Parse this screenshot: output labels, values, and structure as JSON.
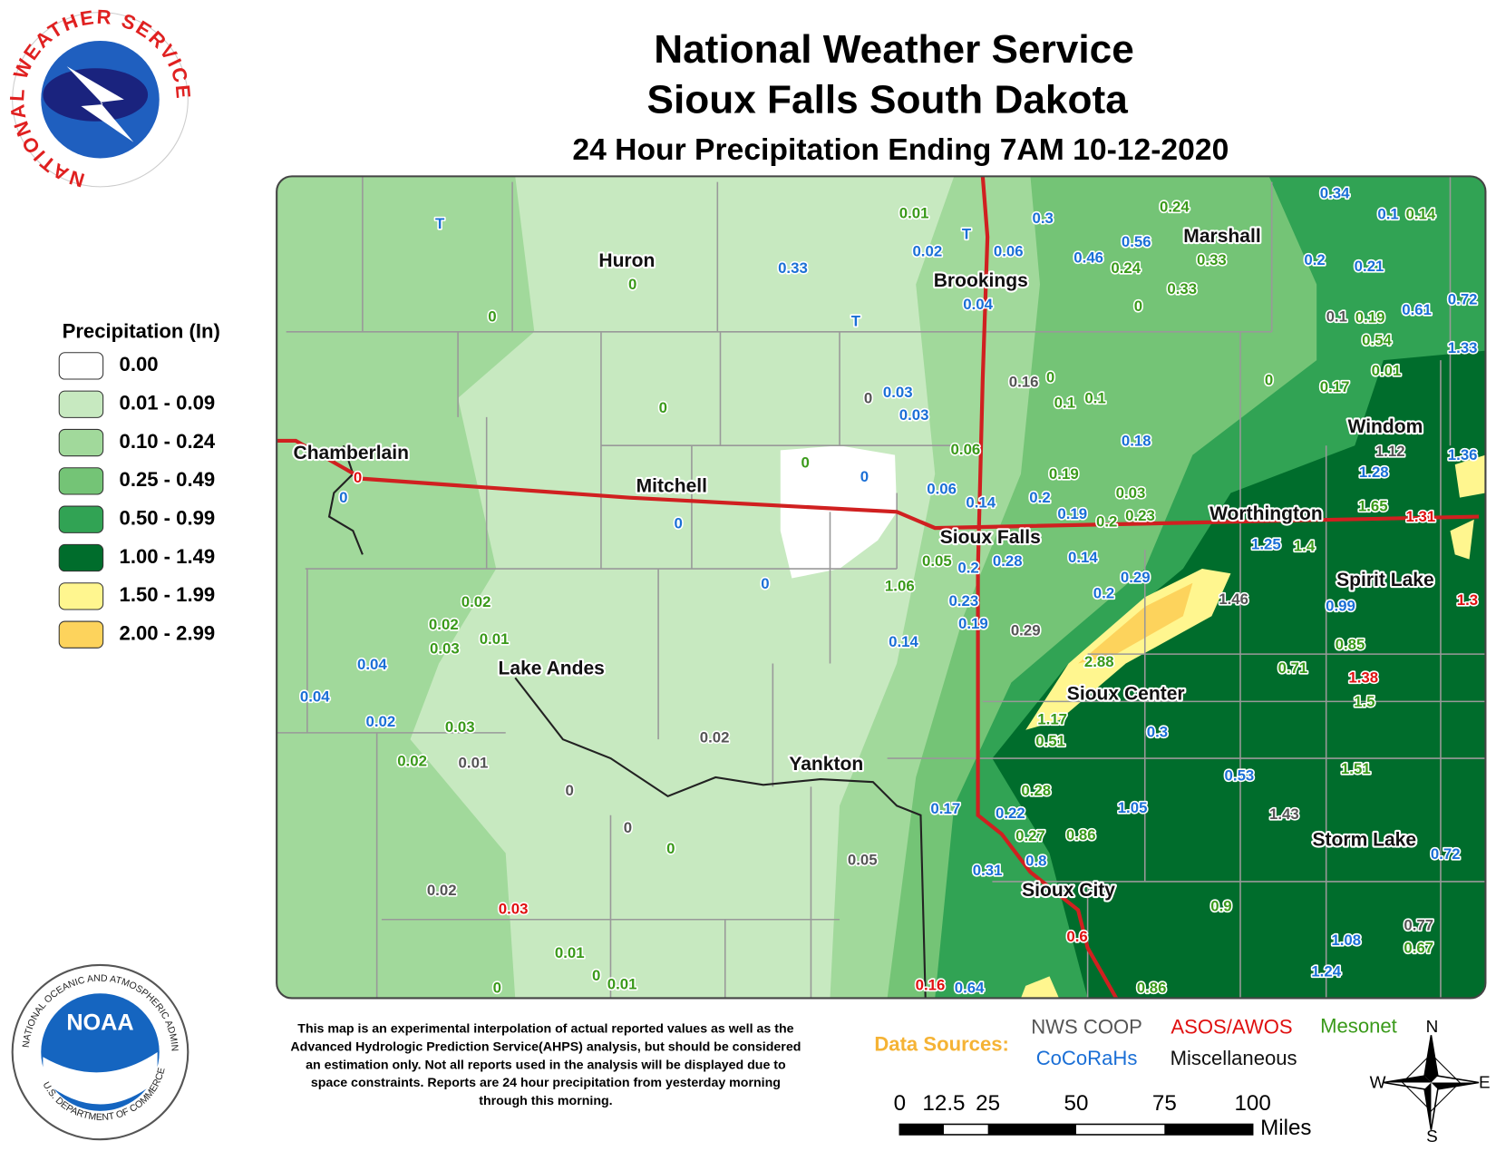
{
  "header": {
    "title": "National Weather Service",
    "subtitle": "Sioux Falls South Dakota",
    "product": "24 Hour Precipitation Ending 7AM 10-12-2020"
  },
  "logos": {
    "nws": "NATIONAL WEATHER SERVICE",
    "noaa": "NOAA",
    "noaa_ring": "NATIONAL OCEANIC AND ATMOSPHERIC ADMINISTRATION",
    "noaa_dept": "U.S. DEPARTMENT OF COMMERCE"
  },
  "legend": {
    "title": "Precipitation (In)",
    "items": [
      {
        "label": "0.00",
        "color": "#ffffff"
      },
      {
        "label": "0.01 - 0.09",
        "color": "#c7e9c0"
      },
      {
        "label": "0.10 - 0.24",
        "color": "#a1d99b"
      },
      {
        "label": "0.25 - 0.49",
        "color": "#74c476"
      },
      {
        "label": "0.50 - 0.99",
        "color": "#31a354"
      },
      {
        "label": "1.00 - 1.49",
        "color": "#006d2c"
      },
      {
        "label": "1.50 - 1.99",
        "color": "#fff68f"
      },
      {
        "label": "2.00 - 2.99",
        "color": "#fdd35c"
      }
    ]
  },
  "cities": [
    "Huron",
    "Brookings",
    "Marshall",
    "Chamberlain",
    "Mitchell",
    "Windom",
    "Worthington",
    "Sioux Falls",
    "Spirit Lake",
    "Lake Andes",
    "Sioux Center",
    "Yankton",
    "Storm Lake",
    "Sioux City"
  ],
  "data_sources": {
    "title": "Data Sources:",
    "items": [
      {
        "label": "NWS COOP",
        "color": "#555555",
        "stations": [
          0.16,
          0,
          1.46,
          0.29,
          0.02,
          0.01,
          0,
          0,
          0.05,
          1.43,
          0.02,
          0.1,
          1.12,
          0.77
        ]
      },
      {
        "label": "ASOS/AWOS",
        "color": "#e01010",
        "stations": [
          0,
          1.31,
          1.3,
          1.38,
          0.03,
          0.6,
          0.16
        ]
      },
      {
        "label": "Mesonet",
        "color": "#3a9a1a",
        "stations": [
          0.01,
          0.24,
          0.14,
          0.24,
          0.33,
          0.33,
          0,
          0.19,
          0.54,
          0.01,
          0.17,
          0,
          0.1,
          0.1,
          0,
          0,
          0,
          0,
          0,
          0.06,
          0.19,
          0.03,
          0.2,
          0.23,
          1.65,
          1.4,
          0.05,
          1.06,
          0.02,
          0.02,
          0.01,
          0.03,
          2.88,
          0.71,
          0.85,
          1.5,
          1.17,
          0.51,
          0.03,
          0.02,
          1.51,
          0.28,
          0.27,
          0.86,
          0.9,
          0,
          0.01,
          0,
          0.01,
          0,
          0.86,
          0.67
        ]
      },
      {
        "label": "CoCoRaHs",
        "color": "#1a6fd6",
        "stations": [
          "T",
          0.33,
          0.02,
          "T",
          0.06,
          0.3,
          0.46,
          0.56,
          0.34,
          0.1,
          0.2,
          0.21,
          0.61,
          0.72,
          1.33,
          0.04,
          "T",
          0.03,
          0.03,
          0.18,
          1.28,
          1.36,
          0.06,
          0.14,
          0.2,
          0.19,
          0,
          0,
          0,
          1.25,
          0.14,
          0.2,
          0.28,
          0.29,
          0.2,
          0.99,
          0.23,
          0.19,
          0.14,
          0,
          0.04,
          0.04,
          0.02,
          0.3,
          0.53,
          1.05,
          0.17,
          0.22,
          0.8,
          0.31,
          0.72,
          1.08,
          1.24,
          0.64
        ]
      },
      {
        "label": "Miscellaneous",
        "color": "#111111"
      }
    ]
  },
  "disclaimer": [
    "This map is an experimental interpolation of actual reported values as well as the",
    "Advanced Hydrologic Prediction Service(AHPS) analysis, but should be considered",
    "an estimation only. Not all reports used in the analysis will be displayed due to",
    "space constraints. Reports are 24 hour precipitation from yesterday morning",
    "through this morning."
  ],
  "scale": {
    "ticks": [
      0,
      12.5,
      25,
      50,
      75,
      100
    ],
    "unit": "Miles"
  },
  "compass": {
    "n": "N",
    "s": "S",
    "e": "E",
    "w": "W"
  }
}
